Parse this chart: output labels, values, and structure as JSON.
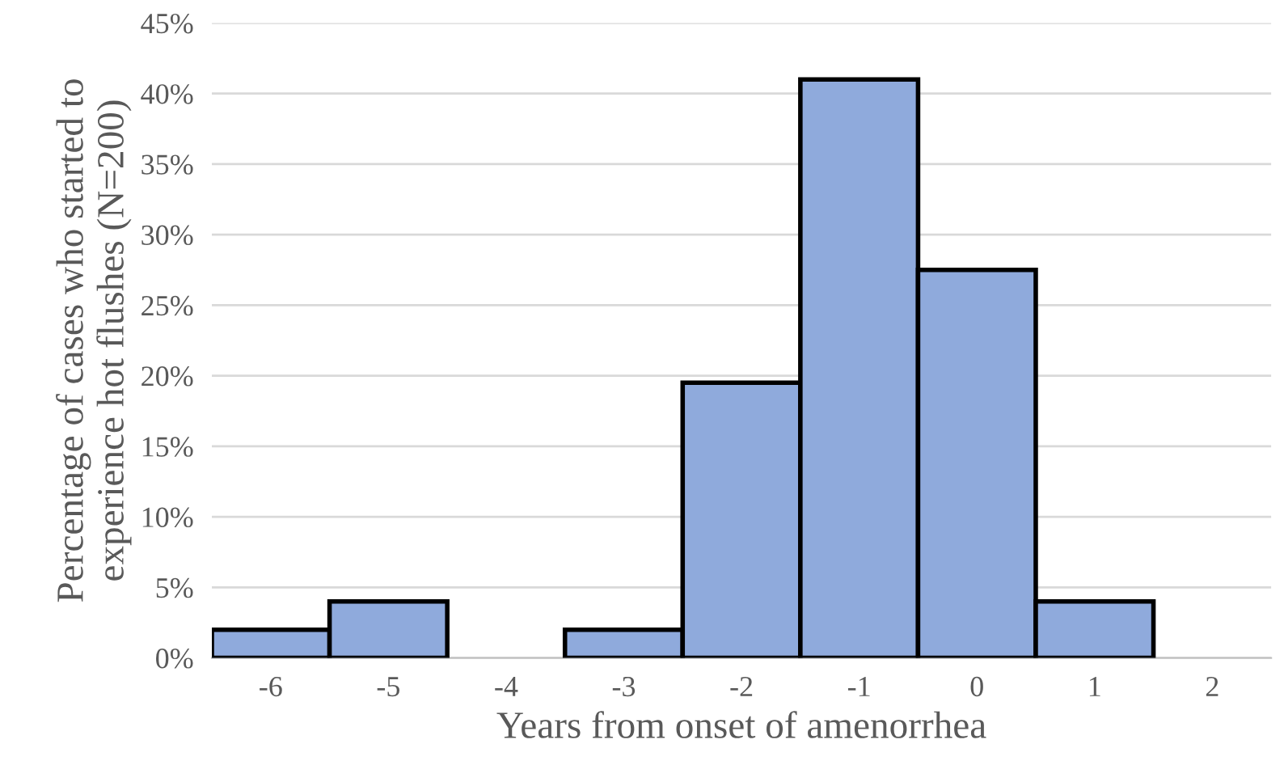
{
  "chart_data": {
    "type": "bar",
    "xlabel": "Years from onset of amenorrhea",
    "ylabel": "Percentage of cases who started to\nexperience hot flushes (N=200)",
    "categories": [
      "-6",
      "-5",
      "-4",
      "-3",
      "-2",
      "-1",
      "0",
      "1",
      "2"
    ],
    "values": [
      2,
      4,
      null,
      2,
      19.5,
      41,
      27.5,
      4,
      null
    ],
    "color": "#8faadc",
    "ylim": [
      0,
      45
    ],
    "yticks": [
      {
        "value": 0,
        "label": "0%"
      },
      {
        "value": 5,
        "label": "5%"
      },
      {
        "value": 10,
        "label": "10%"
      },
      {
        "value": 15,
        "label": "15%"
      },
      {
        "value": 20,
        "label": "20%"
      },
      {
        "value": 25,
        "label": "25%"
      },
      {
        "value": 30,
        "label": "30%"
      },
      {
        "value": 35,
        "label": "35%"
      },
      {
        "value": 40,
        "label": "40%"
      },
      {
        "value": 45,
        "label": "45%"
      }
    ],
    "grid": "y",
    "legend": false
  }
}
